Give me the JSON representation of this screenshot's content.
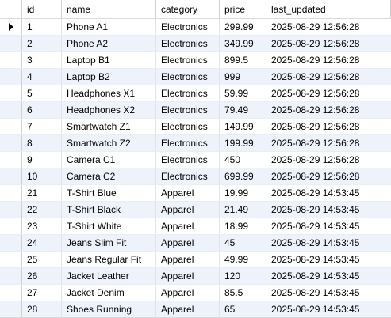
{
  "columns": [
    "id",
    "name",
    "category",
    "price",
    "last_updated"
  ],
  "rows": [
    [
      "1",
      "Phone A1",
      "Electronics",
      "299.99",
      "2025-08-29 12:56:28"
    ],
    [
      "2",
      "Phone A2",
      "Electronics",
      "349.99",
      "2025-08-29 12:56:28"
    ],
    [
      "3",
      "Laptop B1",
      "Electronics",
      "899.5",
      "2025-08-29 12:56:28"
    ],
    [
      "4",
      "Laptop B2",
      "Electronics",
      "999",
      "2025-08-29 12:56:28"
    ],
    [
      "5",
      "Headphones X1",
      "Electronics",
      "59.99",
      "2025-08-29 12:56:28"
    ],
    [
      "6",
      "Headphones X2",
      "Electronics",
      "79.49",
      "2025-08-29 12:56:28"
    ],
    [
      "7",
      "Smartwatch Z1",
      "Electronics",
      "149.99",
      "2025-08-29 12:56:28"
    ],
    [
      "8",
      "Smartwatch Z2",
      "Electronics",
      "199.99",
      "2025-08-29 12:56:28"
    ],
    [
      "9",
      "Camera C1",
      "Electronics",
      "450",
      "2025-08-29 12:56:28"
    ],
    [
      "10",
      "Camera C2",
      "Electronics",
      "699.99",
      "2025-08-29 12:56:28"
    ],
    [
      "21",
      "T-Shirt Blue",
      "Apparel",
      "19.99",
      "2025-08-29 14:53:45"
    ],
    [
      "22",
      "T-Shirt Black",
      "Apparel",
      "21.49",
      "2025-08-29 14:53:45"
    ],
    [
      "23",
      "T-Shirt White",
      "Apparel",
      "18.99",
      "2025-08-29 14:53:45"
    ],
    [
      "24",
      "Jeans Slim Fit",
      "Apparel",
      "45",
      "2025-08-29 14:53:45"
    ],
    [
      "25",
      "Jeans Regular Fit",
      "Apparel",
      "49.99",
      "2025-08-29 14:53:45"
    ],
    [
      "26",
      "Jacket Leather",
      "Apparel",
      "120",
      "2025-08-29 14:53:45"
    ],
    [
      "27",
      "Jacket Denim",
      "Apparel",
      "85.5",
      "2025-08-29 14:53:45"
    ],
    [
      "28",
      "Shoes Running",
      "Apparel",
      "65",
      "2025-08-29 14:53:45"
    ]
  ],
  "current_row_index": 0,
  "colors": {
    "stripe": "#eef3fb",
    "grid_line": "#e3e3e3",
    "header_border": "#d0d0d0"
  },
  "icons": {
    "current_row": "row-indicator-icon"
  }
}
